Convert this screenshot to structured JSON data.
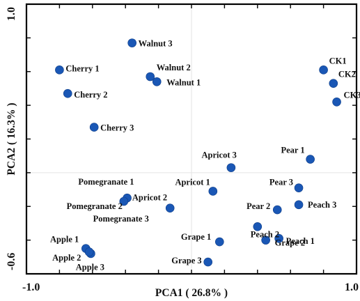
{
  "chart_data": {
    "type": "scatter",
    "title": "",
    "xlabel": "PCA1 ( 26.8% )",
    "ylabel": "PCA2 ( 16.3% )",
    "xlim": [
      -1.0,
      1.0
    ],
    "ylim": [
      -0.6,
      1.0
    ],
    "x_tick_labels": [
      "-1.0",
      "1.0"
    ],
    "y_tick_labels": [
      "-0.6",
      "1.0"
    ],
    "grid": false,
    "reference_lines": {
      "x": 0.0,
      "y": 0.0
    },
    "marker_color": "#1a57b5",
    "points": [
      {
        "label": "Walnut 3",
        "x": -0.36,
        "y": 0.77
      },
      {
        "label": "Cherry 1",
        "x": -0.8,
        "y": 0.61
      },
      {
        "label": "Walnut 2",
        "x": -0.25,
        "y": 0.57
      },
      {
        "label": "Walnut 1",
        "x": -0.21,
        "y": 0.54
      },
      {
        "label": "Cherry 2",
        "x": -0.75,
        "y": 0.47
      },
      {
        "label": "Cherry 3",
        "x": -0.59,
        "y": 0.27
      },
      {
        "label": "CK1",
        "x": 0.8,
        "y": 0.61
      },
      {
        "label": "CK2",
        "x": 0.86,
        "y": 0.53
      },
      {
        "label": "CK3",
        "x": 0.88,
        "y": 0.42
      },
      {
        "label": "Pear 1",
        "x": 0.72,
        "y": 0.08
      },
      {
        "label": "Apricot 3",
        "x": 0.24,
        "y": 0.03
      },
      {
        "label": "Apricot 1",
        "x": 0.13,
        "y": -0.11
      },
      {
        "label": "Pear 3",
        "x": 0.65,
        "y": -0.09
      },
      {
        "label": "Peach 3",
        "x": 0.65,
        "y": -0.19
      },
      {
        "label": "Pear 2",
        "x": 0.52,
        "y": -0.22
      },
      {
        "label": "Pomegranate 1",
        "x": -0.39,
        "y": -0.15
      },
      {
        "label": "Pomegranate 2",
        "x": -0.41,
        "y": -0.17
      },
      {
        "label": "Apricot 2",
        "x": -0.13,
        "y": -0.21
      },
      {
        "label": "Peach 2",
        "x": 0.4,
        "y": -0.32
      },
      {
        "label": "Grape 1",
        "x": 0.17,
        "y": -0.41
      },
      {
        "label": "Grape 2",
        "x": 0.45,
        "y": -0.4
      },
      {
        "label": "Peach 1",
        "x": 0.53,
        "y": -0.39
      },
      {
        "label": "Grape 3",
        "x": 0.1,
        "y": -0.53
      },
      {
        "label": "Apple 1",
        "x": -0.64,
        "y": -0.45
      },
      {
        "label": "Apple 2",
        "x": -0.61,
        "y": -0.48
      },
      {
        "label": "Apple 3",
        "x": -0.62,
        "y": -0.47
      }
    ],
    "free_labels": [
      "Pomegranate 3"
    ]
  }
}
